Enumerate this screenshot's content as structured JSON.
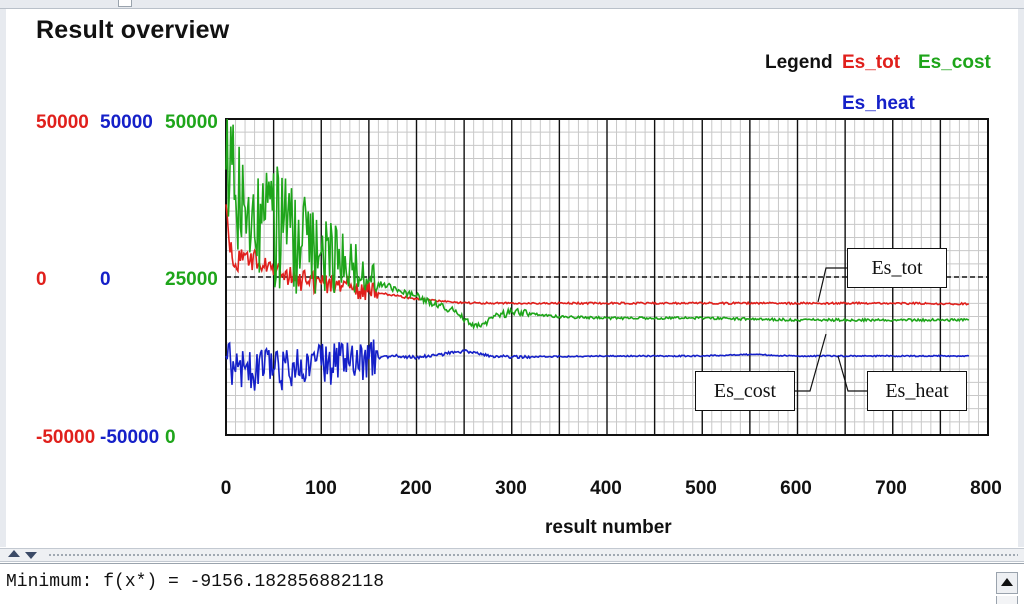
{
  "title": "Result overview",
  "legend": {
    "label": "Legend",
    "items": [
      {
        "name": "Es_tot",
        "color": "#e0201c"
      },
      {
        "name": "Es_cost",
        "color": "#1ea51a"
      },
      {
        "name": "Es_heat",
        "color": "#1520c8"
      }
    ]
  },
  "axes": {
    "red": {
      "top": "50000",
      "mid": "0",
      "bottom": "-50000",
      "color": "#e0201c"
    },
    "blue": {
      "top": "50000",
      "mid": "0",
      "bottom": "-50000",
      "color": "#1520c8"
    },
    "green": {
      "top": "50000",
      "mid": "25000",
      "bottom": "0",
      "color": "#1ea51a"
    }
  },
  "chart_data": {
    "type": "line",
    "xlabel": "result number",
    "xlim": [
      0,
      800
    ],
    "xticks": [
      "0",
      "100",
      "200",
      "300",
      "400",
      "500",
      "600",
      "700",
      "800"
    ],
    "grid": true,
    "legend_position": "top-right",
    "series": [
      {
        "name": "Es_tot",
        "axis": "red",
        "ylim": [
          -50000,
          50000
        ],
        "color": "#e0201c",
        "points": [
          [
            0,
            23000
          ],
          [
            3,
            12000
          ],
          [
            10,
            4000
          ],
          [
            20,
            7000
          ],
          [
            40,
            3000
          ],
          [
            60,
            1000
          ],
          [
            80,
            -1000
          ],
          [
            100,
            -2000
          ],
          [
            130,
            -3500
          ],
          [
            160,
            -5000
          ],
          [
            200,
            -7000
          ],
          [
            250,
            -8200
          ],
          [
            300,
            -8300
          ],
          [
            400,
            -8300
          ],
          [
            500,
            -8300
          ],
          [
            600,
            -8300
          ],
          [
            700,
            -8300
          ],
          [
            780,
            -8500
          ]
        ]
      },
      {
        "name": "Es_cost",
        "axis": "green",
        "ylim": [
          0,
          50000
        ],
        "color": "#1ea51a",
        "points": [
          [
            0,
            42000
          ],
          [
            10,
            38000
          ],
          [
            20,
            36000
          ],
          [
            40,
            34000
          ],
          [
            60,
            32000
          ],
          [
            80,
            30000
          ],
          [
            100,
            29000
          ],
          [
            130,
            27000
          ],
          [
            160,
            24000
          ],
          [
            200,
            22000
          ],
          [
            240,
            19500
          ],
          [
            260,
            17000
          ],
          [
            280,
            18500
          ],
          [
            300,
            19500
          ],
          [
            350,
            18700
          ],
          [
            400,
            18500
          ],
          [
            500,
            18500
          ],
          [
            600,
            18200
          ],
          [
            700,
            18200
          ],
          [
            780,
            18200
          ]
        ]
      },
      {
        "name": "Es_heat",
        "axis": "blue",
        "ylim": [
          -50000,
          50000
        ],
        "color": "#1520c8",
        "points": [
          [
            0,
            -25000
          ],
          [
            5,
            -28000
          ],
          [
            20,
            -29000
          ],
          [
            50,
            -29500
          ],
          [
            100,
            -28000
          ],
          [
            150,
            -26000
          ],
          [
            180,
            -25000
          ],
          [
            200,
            -25500
          ],
          [
            250,
            -23500
          ],
          [
            280,
            -25000
          ],
          [
            300,
            -25300
          ],
          [
            400,
            -25000
          ],
          [
            500,
            -25000
          ],
          [
            550,
            -24500
          ],
          [
            600,
            -25000
          ],
          [
            700,
            -25000
          ],
          [
            780,
            -25000
          ]
        ]
      }
    ],
    "annotations": [
      "Es_tot",
      "Es_cost",
      "Es_heat"
    ]
  },
  "status": {
    "minimum_text": "Minimum: f(x*) = -9156.182856882118"
  }
}
